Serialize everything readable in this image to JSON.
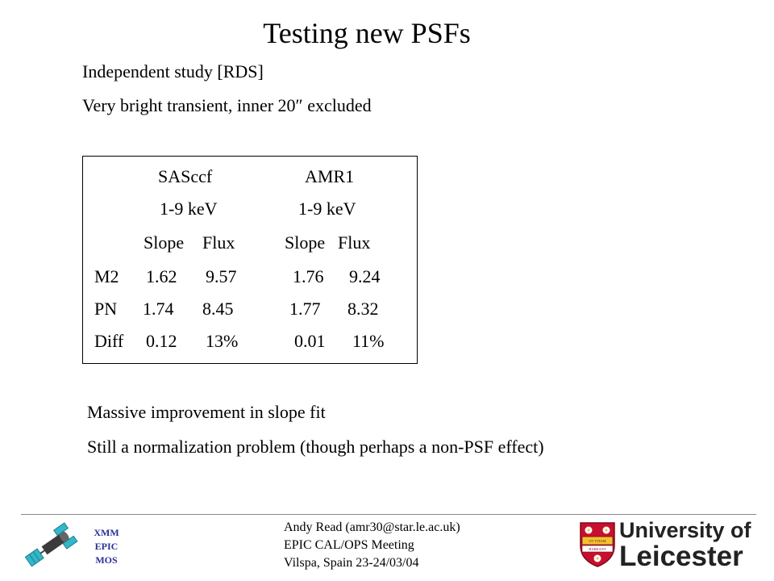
{
  "slide": {
    "title": "Testing new PSFs",
    "bullets": [
      "Independent study [RDS]",
      "Very bright transient, inner 20″ excluded"
    ],
    "conclusions": [
      "Massive improvement in slope fit",
      "Still a normalization problem (though perhaps a non-PSF effect)"
    ]
  },
  "table": {
    "headers": {
      "group1": "SASccf",
      "group2": "AMR1",
      "band1": "1-9 keV",
      "band2": "1-9 keV",
      "col_slope1": "Slope",
      "col_flux1": "Flux",
      "col_slope2": "Slope",
      "col_flux2": "Flux"
    },
    "rows": [
      {
        "label": "M2",
        "slope1": "1.62",
        "flux1": "9.57",
        "slope2": "1.76",
        "flux2": "9.24"
      },
      {
        "label": "PN",
        "slope1": "1.74",
        "flux1": "8.45",
        "slope2": "1.77",
        "flux2": "8.32"
      },
      {
        "label": "Diff",
        "slope1": "0.12",
        "flux1": "13%",
        "slope2": "0.01",
        "flux2": "11%"
      }
    ]
  },
  "footer": {
    "xmm_lines": [
      "XMM",
      "EPIC",
      "MOS"
    ],
    "author": "Andy Read (amr30@star.le.ac.uk)",
    "meeting": "EPIC CAL/OPS Meeting",
    "location": "Vilspa, Spain 23-24/03/04",
    "university_line1": "University of",
    "university_line2": "Leicester",
    "crest_motto": "UT VITAM HABEANT"
  },
  "colors": {
    "xmm_text": "#2a2f9a",
    "crest_red": "#c8102e",
    "crest_gold": "#f2c230"
  }
}
